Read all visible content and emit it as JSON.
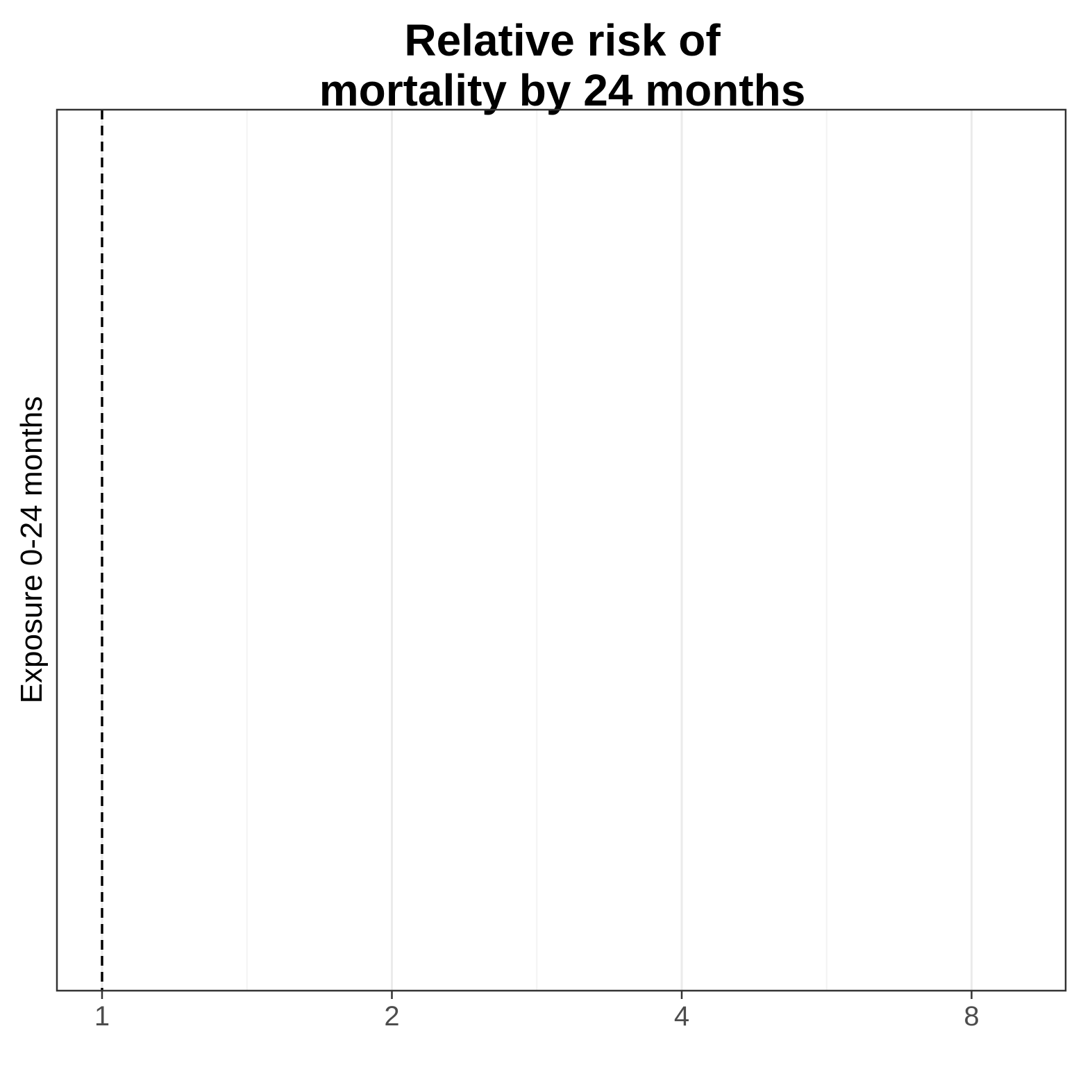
{
  "chart_data": {
    "type": "scatter",
    "title": [
      "Relative risk of",
      "mortality by 24 months"
    ],
    "xlabel": "",
    "ylabel": "Exposure 0-24 months",
    "x_scale": "log2",
    "xlim": [
      0.9,
      11
    ],
    "x_ticks": [
      {
        "value": 1,
        "label": "1"
      },
      {
        "value": 2,
        "label": "2"
      },
      {
        "value": 4,
        "label": "4"
      },
      {
        "value": 8,
        "label": "8"
      }
    ],
    "x_minor_grid": [
      1.4142,
      2.8284,
      5.6569
    ],
    "reference_line": {
      "x": 1,
      "style": "dashed"
    },
    "series": [],
    "grid": "vertical",
    "legend": "none"
  },
  "colors": {
    "background": "#ffffff",
    "panel_border": "#333333",
    "grid_major": "#ebebeb",
    "grid_minor": "#f3f3f3",
    "reference_line": "#000000",
    "tick_label": "#4d4d4d"
  }
}
